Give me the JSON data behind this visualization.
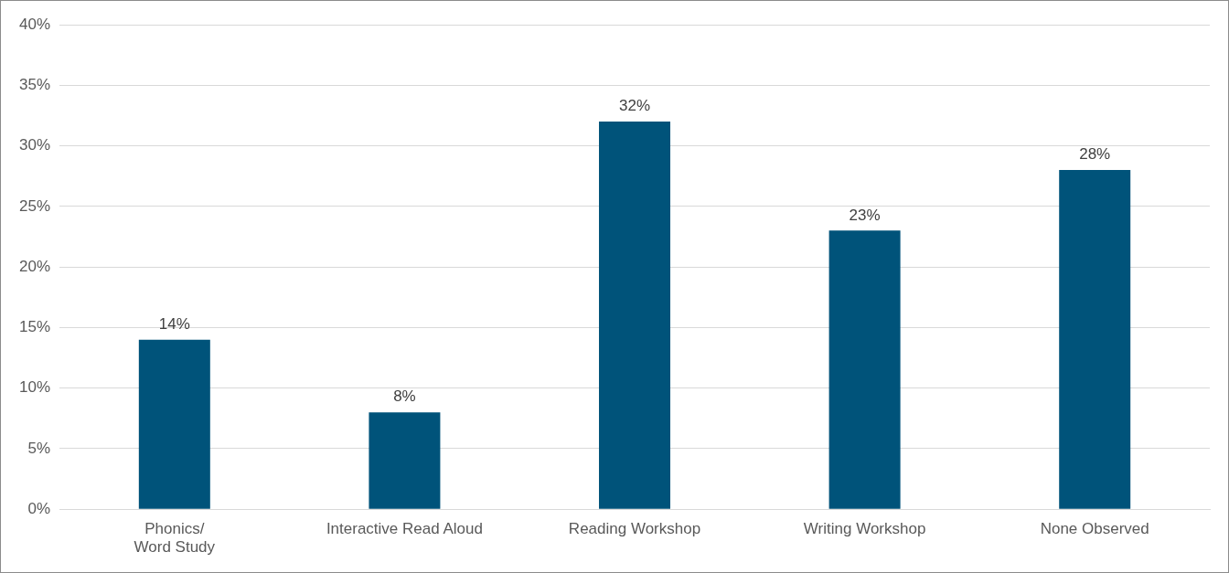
{
  "chart_data": {
    "type": "bar",
    "categories": [
      "Phonics/ Word Study",
      "Interactive Read Aloud",
      "Reading Workshop",
      "Writing Workshop",
      "None Observed"
    ],
    "values": [
      14,
      8,
      32,
      23,
      28
    ],
    "value_labels": [
      "14%",
      "8%",
      "32%",
      "23%",
      "28%"
    ],
    "color": "#00537a",
    "ylim": [
      0,
      40
    ],
    "yticks": [
      {
        "value": 0,
        "label": "0%"
      },
      {
        "value": 5,
        "label": "5%"
      },
      {
        "value": 10,
        "label": "10%"
      },
      {
        "value": 15,
        "label": "15%"
      },
      {
        "value": 20,
        "label": "20%"
      },
      {
        "value": 25,
        "label": "25%"
      },
      {
        "value": 30,
        "label": "30%"
      },
      {
        "value": 35,
        "label": "35%"
      },
      {
        "value": 40,
        "label": "40%"
      }
    ],
    "grid": "y",
    "legend": false
  }
}
